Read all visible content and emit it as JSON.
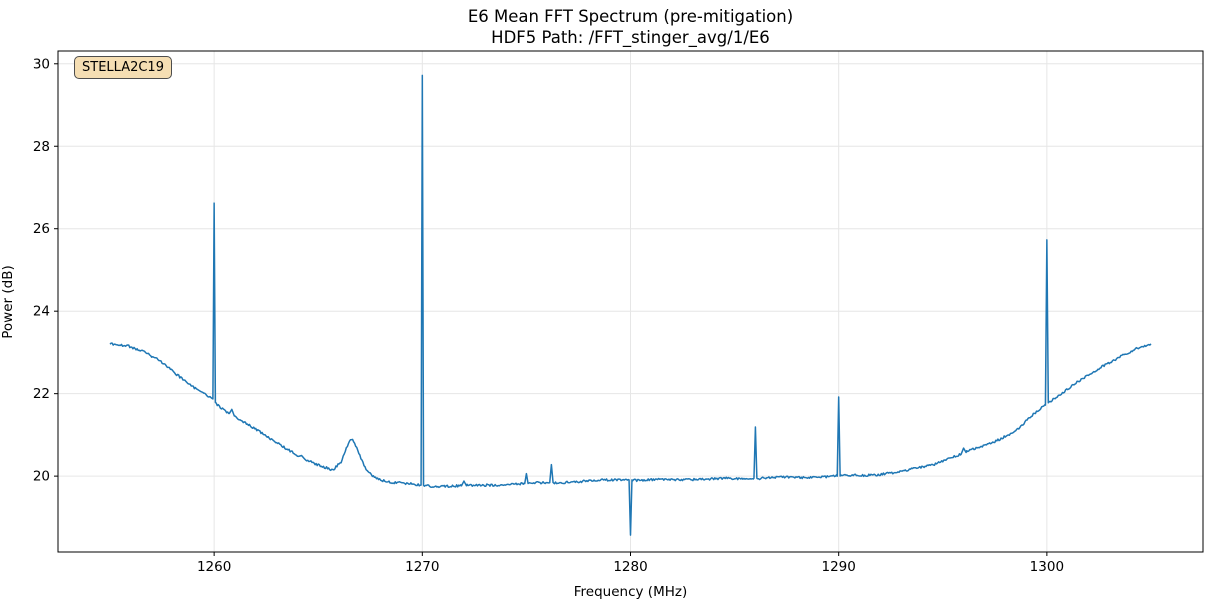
{
  "chart_data": {
    "type": "line",
    "title": "E6 Mean FFT Spectrum (pre-mitigation)",
    "subtitle": "HDF5 Path: /FFT_stinger_avg/1/E6",
    "xlabel": "Frequency (MHz)",
    "ylabel": "Power (dB)",
    "annotation_badge": "STELLA2C19",
    "xlim": [
      1252.5,
      1307.5
    ],
    "ylim": [
      18.16,
      30.31
    ],
    "xticks": [
      1260,
      1270,
      1280,
      1290,
      1300
    ],
    "yticks": [
      20,
      22,
      24,
      26,
      28,
      30
    ],
    "grid": true,
    "legend_position": "none",
    "line_color": "#1f77b4",
    "grid_color": "#e6e6e6",
    "spine_color": "#000000",
    "annotation_bg": "#f5deb3",
    "annotation_border": "#4d4d4d",
    "baseline_points": [
      [
        1255.0,
        23.2
      ],
      [
        1255.8,
        23.18
      ],
      [
        1256.5,
        23.05
      ],
      [
        1257.5,
        22.75
      ],
      [
        1258.5,
        22.35
      ],
      [
        1259.5,
        22.0
      ],
      [
        1259.95,
        21.87
      ],
      [
        1260.15,
        21.72
      ],
      [
        1260.5,
        21.58
      ],
      [
        1261.0,
        21.45
      ],
      [
        1262.0,
        21.15
      ],
      [
        1263.0,
        20.8
      ],
      [
        1264.0,
        20.5
      ],
      [
        1265.0,
        20.28
      ],
      [
        1265.7,
        20.15
      ],
      [
        1266.1,
        20.33
      ],
      [
        1266.4,
        20.72
      ],
      [
        1266.6,
        20.9
      ],
      [
        1266.9,
        20.62
      ],
      [
        1267.3,
        20.15
      ],
      [
        1267.8,
        19.95
      ],
      [
        1268.5,
        19.85
      ],
      [
        1269.5,
        19.8
      ],
      [
        1270.5,
        19.76
      ],
      [
        1271.5,
        19.76
      ],
      [
        1272.5,
        19.77
      ],
      [
        1274.0,
        19.8
      ],
      [
        1276.0,
        19.84
      ],
      [
        1278.0,
        19.88
      ],
      [
        1279.5,
        19.92
      ],
      [
        1280.5,
        19.9
      ],
      [
        1282.0,
        19.92
      ],
      [
        1284.0,
        19.93
      ],
      [
        1286.0,
        19.95
      ],
      [
        1288.0,
        19.97
      ],
      [
        1290.0,
        20.0
      ],
      [
        1291.5,
        20.03
      ],
      [
        1293.0,
        20.1
      ],
      [
        1294.5,
        20.28
      ],
      [
        1296.0,
        20.55
      ],
      [
        1297.5,
        20.85
      ],
      [
        1298.5,
        21.1
      ],
      [
        1299.5,
        21.55
      ],
      [
        1300.5,
        21.95
      ],
      [
        1301.5,
        22.3
      ],
      [
        1302.5,
        22.6
      ],
      [
        1303.5,
        22.9
      ],
      [
        1304.3,
        23.1
      ],
      [
        1305.0,
        23.2
      ]
    ],
    "spikes": [
      {
        "freq": 1260.0,
        "peak": 26.62,
        "hw": 0.06
      },
      {
        "freq": 1260.85,
        "peak": 21.62,
        "hw": 0.12
      },
      {
        "freq": 1264.2,
        "peak": 20.5,
        "hw": 0.12
      },
      {
        "freq": 1270.0,
        "peak": 29.72,
        "hw": 0.06
      },
      {
        "freq": 1272.0,
        "peak": 19.88,
        "hw": 0.12
      },
      {
        "freq": 1275.0,
        "peak": 20.06,
        "hw": 0.08
      },
      {
        "freq": 1276.2,
        "peak": 20.28,
        "hw": 0.08
      },
      {
        "freq": 1280.0,
        "peak": 18.57,
        "hw": 0.07
      },
      {
        "freq": 1286.0,
        "peak": 21.19,
        "hw": 0.07
      },
      {
        "freq": 1290.0,
        "peak": 21.92,
        "hw": 0.07
      },
      {
        "freq": 1296.0,
        "peak": 20.68,
        "hw": 0.12
      },
      {
        "freq": 1300.0,
        "peak": 25.73,
        "hw": 0.07
      }
    ]
  }
}
